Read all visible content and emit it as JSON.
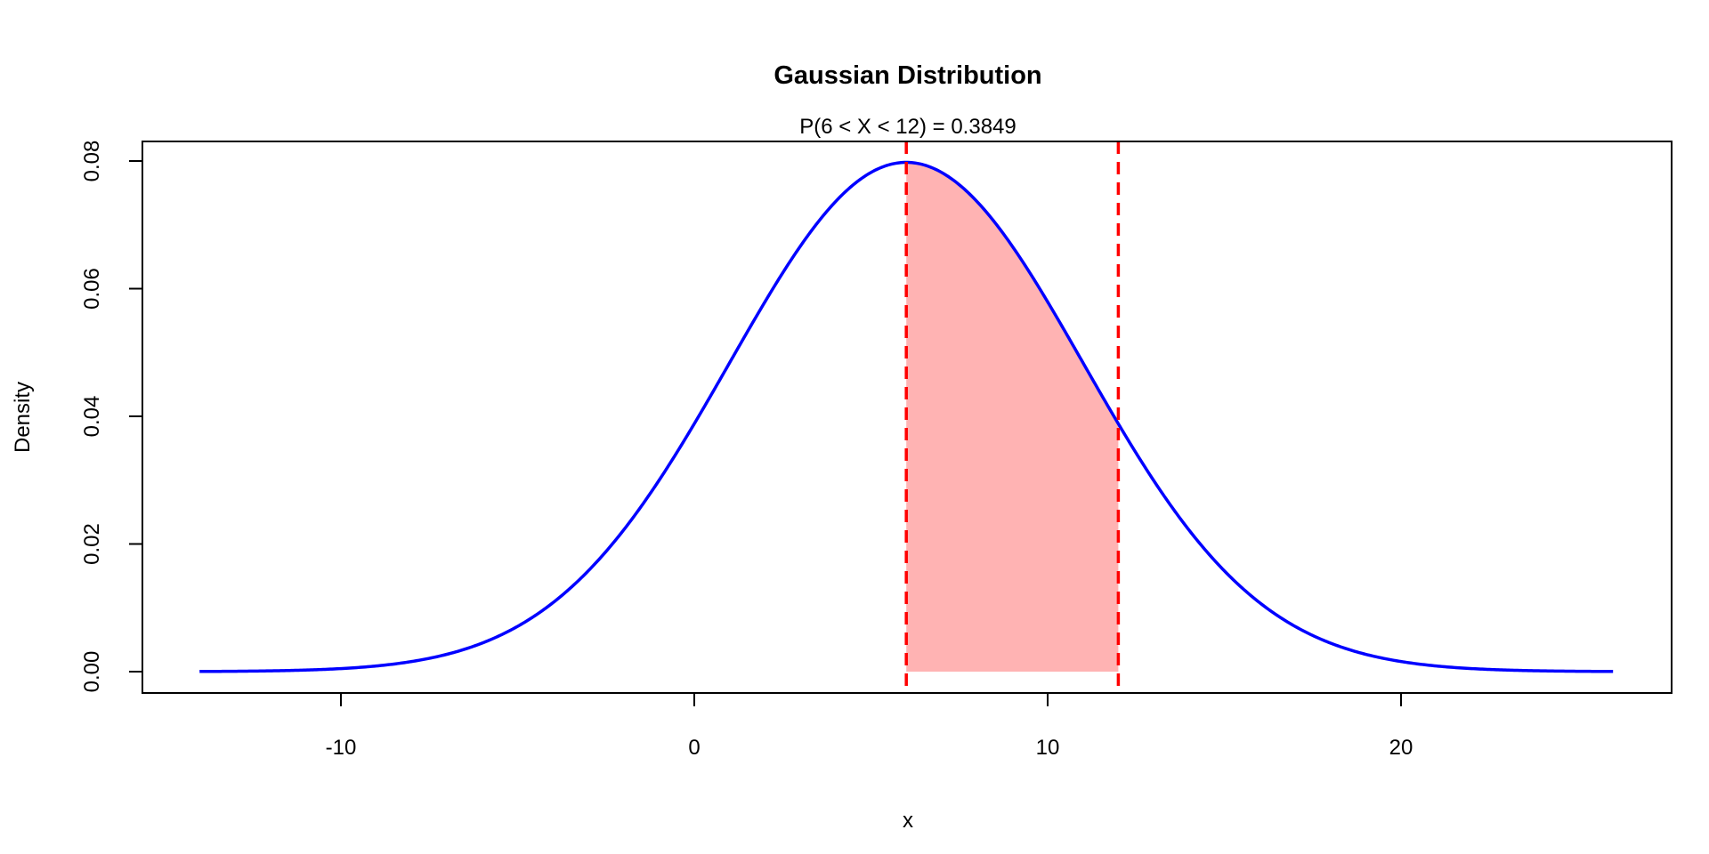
{
  "chart_data": {
    "type": "line",
    "title": "Gaussian Distribution",
    "subtitle": "P(6 < X < 12) = 0.3849",
    "xlabel": "x",
    "ylabel": "Density",
    "distribution": {
      "mean": 6,
      "sd": 5
    },
    "x_range": [
      -14,
      26
    ],
    "xlim": [
      -15.6,
      27.6
    ],
    "ylim": [
      -0.0032,
      0.083
    ],
    "shaded_interval": [
      6,
      12
    ],
    "vlines": [
      6,
      12
    ],
    "x_ticks": [
      -10,
      0,
      10,
      20
    ],
    "x_tick_labels": [
      "-10",
      "0",
      "10",
      "20"
    ],
    "y_ticks": [
      0,
      0.02,
      0.04,
      0.06,
      0.08
    ],
    "y_tick_labels": [
      "0.00",
      "0.02",
      "0.04",
      "0.06",
      "0.08"
    ],
    "colors": {
      "curve": "#0000FF",
      "fill": "#FFB3B3",
      "vline": "#FF0000"
    },
    "grid": false
  }
}
